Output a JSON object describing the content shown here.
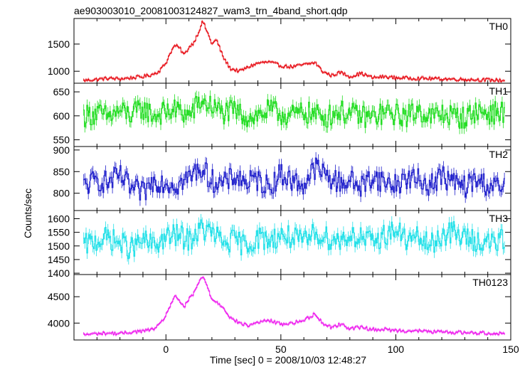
{
  "title": "ae903003010_20081003124827_wam3_trn_4band_short.qdp",
  "ylabel": "Counts/sec",
  "xlabel": "Time [sec] 0 = 2008/10/03 12:48:27",
  "x_ticks": [
    0,
    50,
    100,
    150
  ],
  "chart_data": [
    {
      "type": "line",
      "series": [
        {
          "name": "TH0",
          "color": "#e8141c"
        }
      ],
      "xlim": [
        -40,
        150
      ],
      "ylim": [
        780,
        1970
      ],
      "yticks": [
        1000,
        1500
      ],
      "x": [
        -36,
        -30,
        -25,
        -20,
        -15,
        -10,
        -6,
        -3,
        0,
        2,
        4,
        6,
        8,
        10,
        12,
        14,
        16,
        18,
        20,
        22,
        25,
        28,
        32,
        36,
        40,
        45,
        50,
        55,
        60,
        65,
        68,
        72,
        76,
        80,
        85,
        90,
        95,
        100,
        110,
        120,
        130,
        140,
        147
      ],
      "values": [
        830,
        850,
        870,
        860,
        880,
        900,
        940,
        1000,
        1150,
        1350,
        1480,
        1420,
        1300,
        1440,
        1520,
        1700,
        1920,
        1720,
        1500,
        1580,
        1250,
        1050,
        1000,
        1080,
        1150,
        1170,
        1100,
        1080,
        1120,
        1160,
        1000,
        920,
        980,
        900,
        960,
        880,
        900,
        880,
        870,
        860,
        850,
        840,
        830
      ]
    },
    {
      "type": "line",
      "series": [
        {
          "name": "TH1",
          "color": "#22dd22"
        }
      ],
      "xlim": [
        -40,
        150
      ],
      "ylim": [
        536,
        668
      ],
      "yticks": [
        550,
        600,
        650
      ],
      "x": [
        -36,
        -30,
        -25,
        -20,
        -15,
        -10,
        -5,
        0,
        5,
        10,
        15,
        20,
        25,
        30,
        35,
        40,
        45,
        50,
        55,
        60,
        65,
        70,
        75,
        80,
        85,
        90,
        95,
        100,
        105,
        110,
        115,
        120,
        125,
        130,
        135,
        140,
        147
      ],
      "values": [
        600,
        605,
        598,
        610,
        602,
        615,
        600,
        608,
        612,
        600,
        630,
        620,
        605,
        610,
        598,
        600,
        612,
        604,
        600,
        608,
        602,
        598,
        610,
        604,
        600,
        596,
        606,
        602,
        600,
        612,
        598,
        604,
        600,
        595,
        610,
        605,
        608
      ]
    },
    {
      "type": "line",
      "series": [
        {
          "name": "TH2",
          "color": "#2222cc"
        }
      ],
      "xlim": [
        -40,
        150
      ],
      "ylim": [
        760,
        908
      ],
      "yticks": [
        800,
        850,
        900
      ],
      "x": [
        -36,
        -30,
        -25,
        -20,
        -15,
        -10,
        -5,
        0,
        5,
        10,
        15,
        20,
        25,
        30,
        35,
        40,
        45,
        50,
        55,
        60,
        65,
        70,
        75,
        80,
        85,
        90,
        95,
        100,
        105,
        110,
        115,
        120,
        125,
        130,
        135,
        140,
        147
      ],
      "values": [
        815,
        830,
        825,
        840,
        810,
        800,
        830,
        825,
        820,
        835,
        860,
        830,
        820,
        840,
        825,
        830,
        815,
        845,
        828,
        820,
        860,
        840,
        825,
        830,
        815,
        840,
        825,
        820,
        835,
        830,
        820,
        840,
        825,
        815,
        830,
        820,
        810
      ]
    },
    {
      "type": "line",
      "series": [
        {
          "name": "TH3",
          "color": "#22e0e8"
        }
      ],
      "xlim": [
        -40,
        150
      ],
      "ylim": [
        1395,
        1630
      ],
      "yticks": [
        1400,
        1450,
        1500,
        1550,
        1600
      ],
      "x": [
        -36,
        -30,
        -25,
        -20,
        -15,
        -10,
        -5,
        0,
        5,
        10,
        15,
        20,
        25,
        30,
        35,
        40,
        45,
        50,
        55,
        60,
        65,
        70,
        75,
        80,
        85,
        90,
        95,
        100,
        105,
        110,
        115,
        120,
        125,
        130,
        135,
        140,
        147
      ],
      "values": [
        1500,
        1520,
        1530,
        1510,
        1490,
        1520,
        1500,
        1530,
        1540,
        1520,
        1560,
        1550,
        1510,
        1520,
        1500,
        1530,
        1520,
        1540,
        1530,
        1510,
        1550,
        1530,
        1520,
        1540,
        1530,
        1510,
        1540,
        1560,
        1520,
        1530,
        1500,
        1540,
        1550,
        1530,
        1520,
        1510,
        1520
      ]
    },
    {
      "type": "line",
      "series": [
        {
          "name": "TH0123",
          "color": "#ee22ee"
        }
      ],
      "xlim": [
        -40,
        150
      ],
      "ylim": [
        3680,
        4920
      ],
      "yticks": [
        4000,
        4500
      ],
      "x": [
        -36,
        -30,
        -25,
        -20,
        -15,
        -10,
        -6,
        -3,
        0,
        2,
        4,
        6,
        8,
        10,
        12,
        14,
        16,
        18,
        20,
        22,
        25,
        28,
        32,
        36,
        40,
        45,
        50,
        55,
        60,
        65,
        68,
        72,
        76,
        80,
        85,
        90,
        95,
        100,
        110,
        120,
        130,
        140,
        147
      ],
      "values": [
        3780,
        3800,
        3810,
        3800,
        3830,
        3850,
        3880,
        3950,
        4150,
        4350,
        4500,
        4420,
        4300,
        4450,
        4550,
        4750,
        4880,
        4700,
        4450,
        4400,
        4300,
        4100,
        4000,
        3950,
        4020,
        4050,
        3980,
        4000,
        4050,
        4180,
        4000,
        3920,
        3980,
        3900,
        3920,
        3880,
        3880,
        3860,
        3850,
        3830,
        3820,
        3810,
        3800
      ]
    }
  ]
}
